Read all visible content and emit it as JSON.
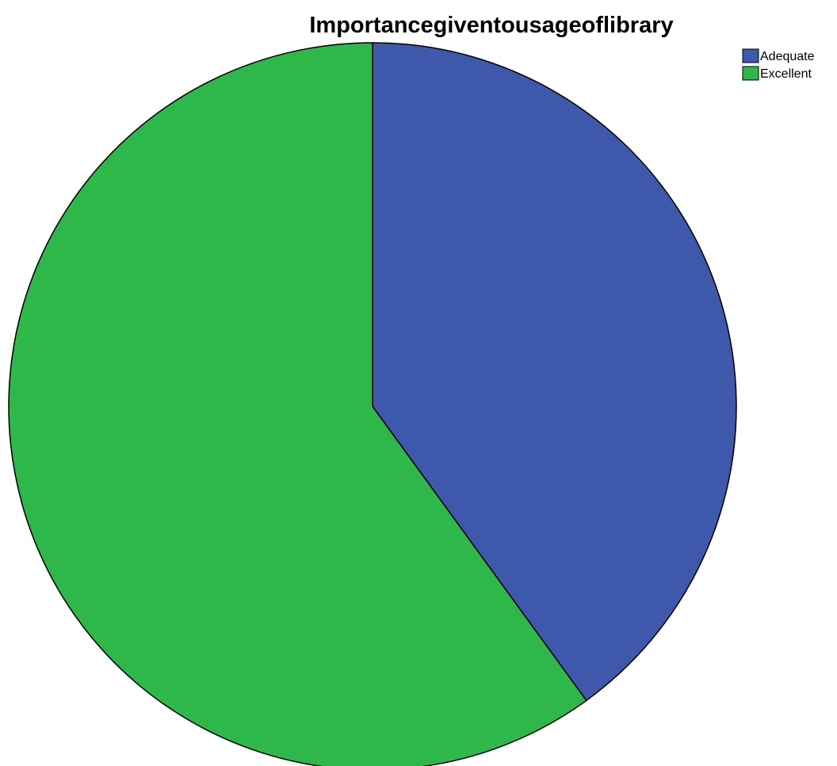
{
  "chart_data": {
    "type": "pie",
    "title": "Importancegiventousageoflibrary",
    "legend_position": "top-right",
    "slices": [
      {
        "label": "Adequate",
        "value": 40,
        "color": "#3e58ac"
      },
      {
        "label": "Excellent",
        "value": 60,
        "color": "#2eb84a"
      }
    ]
  }
}
